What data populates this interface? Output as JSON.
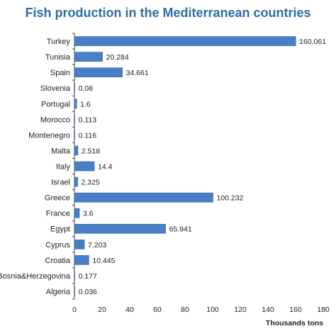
{
  "chart_data": {
    "type": "bar",
    "orientation": "horizontal",
    "title": "Fish production in the Mediterranean countries",
    "xlabel": "Thousands tons",
    "ylabel": "",
    "xlim": [
      0,
      180
    ],
    "xticks": [
      0,
      20,
      40,
      60,
      80,
      100,
      120,
      140,
      160,
      180
    ],
    "grid": false,
    "categories": [
      "Turkey",
      "Tunisia",
      "Spain",
      "Slovenia",
      "Portugal",
      "Morocco",
      "Montenegro",
      "Malta",
      "Italy",
      "Israel",
      "Greece",
      "France",
      "Egypt",
      "Cyprus",
      "Croatia",
      "Bosnia&Herzegovina",
      "Algeria"
    ],
    "values": [
      160.061,
      20.284,
      34.661,
      0.08,
      1.6,
      0.113,
      0.116,
      2.518,
      14.4,
      2.325,
      100.232,
      3.6,
      65.941,
      7.203,
      10.445,
      0.177,
      0.036
    ],
    "value_labels": [
      "160.061",
      "20.284",
      "34.661",
      "0.08",
      "1.6",
      "0.113",
      "0.116",
      "2.518",
      "14.4",
      "2.325",
      "100.232",
      "3.6",
      "65.941",
      "7.203",
      "10.445",
      "0.177",
      "0.036"
    ],
    "colors": {
      "bar_fill": "#4a7fc6",
      "bar_stroke": "#2e5f9e",
      "title": "#2f6da6",
      "axis": "#444444"
    }
  }
}
